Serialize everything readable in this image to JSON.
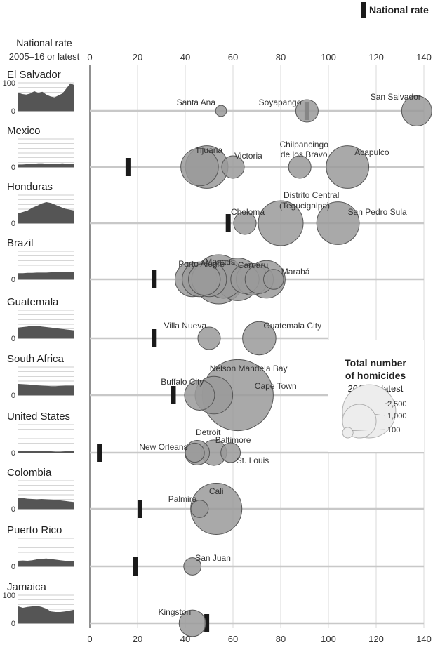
{
  "chart_data": {
    "type": "scatter",
    "title": "",
    "header": {
      "line1": "National rate",
      "line2": "2005–16 or latest",
      "key_label": "National rate"
    },
    "x_ticks": [
      "0",
      "20",
      "40",
      "60",
      "80",
      "100",
      "120",
      "140"
    ],
    "xlim": [
      0,
      140
    ],
    "spark_ticks": [
      "100",
      "0"
    ],
    "legend": {
      "title_line1": "Total number",
      "title_line2": "of homicides",
      "subtitle": "2016 or latest",
      "sizes": [
        {
          "label": "2,500",
          "value": 2500
        },
        {
          "label": "1,000",
          "value": 1000
        },
        {
          "label": "100",
          "value": 100
        }
      ]
    },
    "colors": {
      "city": "#9a9a9a",
      "city_stroke": "#555555",
      "national": "#1a1a1a",
      "spark": "#555555",
      "line": "#c8c8c8"
    },
    "countries": [
      {
        "name": "El Salvador",
        "national_rate": 91,
        "spark": [
          65,
          60,
          58,
          62,
          70,
          64,
          68,
          58,
          52,
          48,
          55,
          62,
          80,
          98,
          92
        ],
        "cities": [
          {
            "name": "Santa Ana",
            "rate": 55,
            "homicides": 60
          },
          {
            "name": "Soyapango",
            "rate": 91,
            "homicides": 250
          },
          {
            "name": "San Salvador",
            "rate": 137,
            "homicides": 450
          }
        ]
      },
      {
        "name": "Mexico",
        "national_rate": 16,
        "spark": [
          9,
          9,
          10,
          11,
          12,
          13,
          13,
          12,
          11,
          10,
          12,
          13,
          12,
          12,
          11
        ],
        "cities": [
          {
            "name": "",
            "rate": 46,
            "homicides": 700
          },
          {
            "name": "Tijuana",
            "rate": 49,
            "homicides": 900
          },
          {
            "name": "Victoria",
            "rate": 60,
            "homicides": 250
          },
          {
            "name": "Chilpancingo de los Bravo",
            "rate": 88,
            "homicides": 250
          },
          {
            "name": "Acapulco",
            "rate": 108,
            "homicides": 900
          }
        ]
      },
      {
        "name": "Honduras",
        "national_rate": 58,
        "spark": [
          35,
          40,
          45,
          55,
          62,
          70,
          75,
          72,
          65,
          58,
          52,
          48,
          45
        ],
        "cities": [
          {
            "name": "Choloma",
            "rate": 65,
            "homicides": 250
          },
          {
            "name": "Distrito Central (Tegucigalpa)",
            "rate": 80,
            "homicides": 1000
          },
          {
            "name": "San Pedro Sula",
            "rate": 104,
            "homicides": 900
          }
        ]
      },
      {
        "name": "Brazil",
        "national_rate": 27,
        "spark": [
          22,
          22,
          23,
          23,
          24,
          24,
          24,
          25,
          25,
          26,
          26,
          27,
          27
        ],
        "cities": [
          {
            "name": "Porto Alegre",
            "rate": 43,
            "homicides": 600
          },
          {
            "name": "",
            "rate": 46,
            "homicides": 600
          },
          {
            "name": "",
            "rate": 48,
            "homicides": 500
          },
          {
            "name": "",
            "rate": 50,
            "homicides": 600
          },
          {
            "name": "Manaus",
            "rate": 54,
            "homicides": 1200
          },
          {
            "name": "",
            "rate": 56,
            "homicides": 700
          },
          {
            "name": "Caruaru",
            "rate": 62,
            "homicides": 900
          },
          {
            "name": "",
            "rate": 65,
            "homicides": 400
          },
          {
            "name": "",
            "rate": 68,
            "homicides": 500
          },
          {
            "name": "",
            "rate": 71,
            "homicides": 400
          },
          {
            "name": "",
            "rate": 74,
            "homicides": 700
          },
          {
            "name": "Marabá",
            "rate": 77,
            "homicides": 200
          }
        ]
      },
      {
        "name": "Guatemala",
        "national_rate": 27,
        "spark": [
          38,
          40,
          42,
          45,
          44,
          42,
          40,
          38,
          36,
          34,
          32,
          30,
          28
        ],
        "cities": [
          {
            "name": "Villa Nueva",
            "rate": 50,
            "homicides": 250
          },
          {
            "name": "Guatemala City",
            "rate": 71,
            "homicides": 550
          }
        ]
      },
      {
        "name": "South Africa",
        "national_rate": 35,
        "spark": [
          40,
          39,
          38,
          37,
          35,
          34,
          33,
          32,
          32,
          33,
          34,
          34,
          34
        ],
        "cities": [
          {
            "name": "Buffalo City",
            "rate": 46,
            "homicides": 450
          },
          {
            "name": "Nelson Mandela Bay",
            "rate": 52,
            "homicides": 700
          },
          {
            "name": "Cape Town",
            "rate": 62,
            "homicides": 2500
          }
        ]
      },
      {
        "name": "United States",
        "national_rate": 4,
        "spark": [
          6,
          6,
          6,
          5,
          5,
          5,
          5,
          5,
          4,
          4,
          5,
          5,
          5
        ],
        "cities": [
          {
            "name": "New Orleans",
            "rate": 44,
            "homicides": 180
          },
          {
            "name": "Detroit",
            "rate": 45,
            "homicides": 300
          },
          {
            "name": "Baltimore",
            "rate": 52,
            "homicides": 320
          },
          {
            "name": "St. Louis",
            "rate": 59,
            "homicides": 190
          }
        ]
      },
      {
        "name": "Colombia",
        "national_rate": 21,
        "spark": [
          40,
          38,
          36,
          35,
          34,
          35,
          34,
          33,
          32,
          30,
          28,
          26,
          24
        ],
        "cities": [
          {
            "name": "Palmira",
            "rate": 46,
            "homicides": 150
          },
          {
            "name": "Cali",
            "rate": 53,
            "homicides": 1300
          }
        ]
      },
      {
        "name": "Puerto Rico",
        "national_rate": 19,
        "spark": [
          20,
          21,
          20,
          22,
          25,
          27,
          28,
          26,
          24,
          22,
          20,
          19,
          18
        ],
        "cities": [
          {
            "name": "San Juan",
            "rate": 43,
            "homicides": 150
          }
        ]
      },
      {
        "name": "Jamaica",
        "national_rate": 49,
        "spark": [
          60,
          55,
          58,
          60,
          62,
          58,
          52,
          42,
          40,
          40,
          42,
          45,
          48
        ],
        "cities": [
          {
            "name": "Kingston",
            "rate": 43,
            "homicides": 350
          }
        ]
      }
    ]
  }
}
